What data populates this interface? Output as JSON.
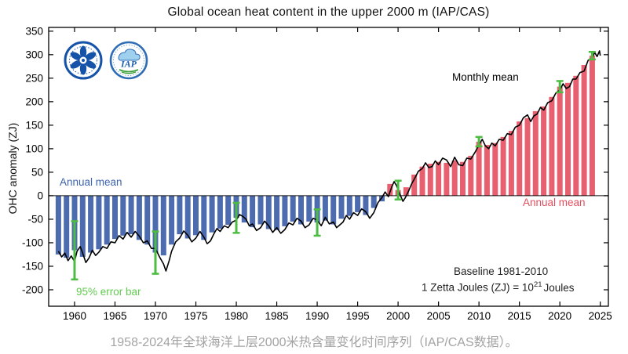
{
  "caption": "1958-2024年全球海洋上层2000米热含量变化时间序列（IAP/CAS数据）。",
  "logos": {
    "iap_text": "IAP"
  },
  "annotations": {
    "annual_mean_left": "Annual mean",
    "monthly_mean": "Monthly mean",
    "annual_mean_right": "Annual mean",
    "error_bar": "95% error bar",
    "baseline": "Baseline 1981-2010",
    "unit_prefix": "1 Zetta Joules (ZJ) = 10",
    "unit_exponent": "21",
    "unit_suffix": "Joules"
  },
  "chart_data": {
    "type": "bar",
    "title": "Global ocean heat content in the upper 2000 m (IAP/CAS)",
    "xlabel": "",
    "ylabel": "OHC anomaly (ZJ)",
    "xlim": [
      1956.8,
      2026
    ],
    "ylim": [
      -235,
      358
    ],
    "grid": false,
    "x_ticks": [
      1960,
      1965,
      1970,
      1975,
      1980,
      1985,
      1990,
      1995,
      2000,
      2005,
      2010,
      2015,
      2020,
      2025
    ],
    "y_ticks": [
      -200,
      -150,
      -100,
      -50,
      0,
      50,
      100,
      150,
      200,
      250,
      300,
      350
    ],
    "colors": {
      "negative_bar": "#4d6cb0",
      "positive_bar": "#e85f6f",
      "line": "#000000",
      "error": "#4cbd42",
      "blue_text": "#3c64b0",
      "red_text": "#e14f5e",
      "green_text": "#62cb51"
    },
    "years": [
      1958,
      1959,
      1960,
      1961,
      1962,
      1963,
      1964,
      1965,
      1966,
      1967,
      1968,
      1969,
      1970,
      1971,
      1972,
      1973,
      1974,
      1975,
      1976,
      1977,
      1978,
      1979,
      1980,
      1981,
      1982,
      1983,
      1984,
      1985,
      1986,
      1987,
      1988,
      1989,
      1990,
      1991,
      1992,
      1993,
      1994,
      1995,
      1996,
      1997,
      1998,
      1999,
      2000,
      2001,
      2002,
      2003,
      2004,
      2005,
      2006,
      2007,
      2008,
      2009,
      2010,
      2011,
      2012,
      2013,
      2014,
      2015,
      2016,
      2017,
      2018,
      2019,
      2020,
      2021,
      2022,
      2023,
      2024
    ],
    "annual_mean": [
      -125,
      -132,
      -116,
      -130,
      -121,
      -114,
      -104,
      -92,
      -85,
      -82,
      -94,
      -104,
      -121,
      -127,
      -104,
      -82,
      -91,
      -84,
      -94,
      -78,
      -70,
      -62,
      -47,
      -57,
      -67,
      -61,
      -71,
      -73,
      -65,
      -55,
      -61,
      -55,
      -57,
      -53,
      -61,
      -49,
      -43,
      -35,
      -41,
      -26,
      -12,
      25,
      12,
      18,
      45,
      62,
      68,
      72,
      70,
      75,
      72,
      85,
      115,
      108,
      112,
      125,
      138,
      158,
      165,
      180,
      190,
      210,
      232,
      240,
      255,
      278,
      298
    ],
    "error_bars": [
      {
        "year": 1960,
        "center": -116,
        "half": 62
      },
      {
        "year": 1970,
        "center": -121,
        "half": 45
      },
      {
        "year": 1980,
        "center": -47,
        "half": 32
      },
      {
        "year": 1990,
        "center": -57,
        "half": 28
      },
      {
        "year": 2000,
        "center": 12,
        "half": 20
      },
      {
        "year": 2010,
        "center": 115,
        "half": 10
      },
      {
        "year": 2020,
        "center": 232,
        "half": 12
      },
      {
        "year": 2024,
        "center": 298,
        "half": 8
      }
    ],
    "monthly_mean": [
      [
        1958.0,
        -118
      ],
      [
        1958.4,
        -130
      ],
      [
        1958.8,
        -122
      ],
      [
        1959.2,
        -138
      ],
      [
        1959.6,
        -128
      ],
      [
        1960.0,
        -140
      ],
      [
        1960.3,
        -118
      ],
      [
        1960.7,
        -108
      ],
      [
        1961.0,
        -122
      ],
      [
        1961.4,
        -142
      ],
      [
        1961.8,
        -132
      ],
      [
        1962.2,
        -116
      ],
      [
        1962.6,
        -127
      ],
      [
        1963.0,
        -120
      ],
      [
        1963.5,
        -108
      ],
      [
        1964.0,
        -112
      ],
      [
        1964.5,
        -98
      ],
      [
        1965.0,
        -100
      ],
      [
        1965.5,
        -85
      ],
      [
        1966.0,
        -92
      ],
      [
        1966.5,
        -78
      ],
      [
        1967.0,
        -88
      ],
      [
        1967.5,
        -76
      ],
      [
        1968.0,
        -86
      ],
      [
        1968.5,
        -100
      ],
      [
        1969.0,
        -96
      ],
      [
        1969.5,
        -112
      ],
      [
        1970.0,
        -112
      ],
      [
        1970.5,
        -130
      ],
      [
        1971.0,
        -145
      ],
      [
        1971.3,
        -160
      ],
      [
        1971.7,
        -138
      ],
      [
        1972.0,
        -118
      ],
      [
        1972.5,
        -98
      ],
      [
        1973.0,
        -90
      ],
      [
        1973.5,
        -75
      ],
      [
        1974.0,
        -84
      ],
      [
        1974.5,
        -98
      ],
      [
        1975.0,
        -90
      ],
      [
        1975.5,
        -76
      ],
      [
        1976.0,
        -88
      ],
      [
        1976.4,
        -102
      ],
      [
        1976.8,
        -96
      ],
      [
        1977.2,
        -82
      ],
      [
        1977.6,
        -70
      ],
      [
        1978.0,
        -76
      ],
      [
        1978.5,
        -64
      ],
      [
        1979.0,
        -68
      ],
      [
        1979.5,
        -56
      ],
      [
        1980.0,
        -52
      ],
      [
        1980.4,
        -40
      ],
      [
        1980.8,
        -44
      ],
      [
        1981.2,
        -50
      ],
      [
        1981.6,
        -64
      ],
      [
        1982.0,
        -60
      ],
      [
        1982.5,
        -74
      ],
      [
        1983.0,
        -68
      ],
      [
        1983.5,
        -54
      ],
      [
        1984.0,
        -64
      ],
      [
        1984.5,
        -78
      ],
      [
        1985.0,
        -68
      ],
      [
        1985.5,
        -80
      ],
      [
        1986.0,
        -72
      ],
      [
        1986.5,
        -58
      ],
      [
        1987.0,
        -62
      ],
      [
        1987.5,
        -48
      ],
      [
        1988.0,
        -54
      ],
      [
        1988.5,
        -68
      ],
      [
        1989.0,
        -62
      ],
      [
        1989.5,
        -48
      ],
      [
        1990.0,
        -52
      ],
      [
        1990.5,
        -64
      ],
      [
        1991.0,
        -46
      ],
      [
        1991.5,
        -60
      ],
      [
        1992.0,
        -56
      ],
      [
        1992.4,
        -68
      ],
      [
        1992.8,
        -62
      ],
      [
        1993.2,
        -56
      ],
      [
        1993.6,
        -42
      ],
      [
        1994.0,
        -50
      ],
      [
        1994.5,
        -36
      ],
      [
        1995.0,
        -42
      ],
      [
        1995.5,
        -28
      ],
      [
        1996.0,
        -34
      ],
      [
        1996.5,
        -48
      ],
      [
        1997.0,
        -36
      ],
      [
        1997.5,
        -15
      ],
      [
        1998.0,
        -4
      ],
      [
        1998.4,
        8
      ],
      [
        1998.8,
        -2
      ],
      [
        1999.2,
        18
      ],
      [
        1999.5,
        30
      ],
      [
        1999.8,
        22
      ],
      [
        2000.2,
        4
      ],
      [
        2000.6,
        -12
      ],
      [
        2000.9,
        -4
      ],
      [
        2001.3,
        10
      ],
      [
        2001.7,
        26
      ],
      [
        2002.0,
        35
      ],
      [
        2002.5,
        52
      ],
      [
        2003.0,
        58
      ],
      [
        2003.4,
        70
      ],
      [
        2003.8,
        60
      ],
      [
        2004.2,
        62
      ],
      [
        2004.6,
        74
      ],
      [
        2005.0,
        66
      ],
      [
        2005.5,
        80
      ],
      [
        2006.0,
        76
      ],
      [
        2006.5,
        62
      ],
      [
        2007.0,
        82
      ],
      [
        2007.5,
        66
      ],
      [
        2008.0,
        64
      ],
      [
        2008.5,
        80
      ],
      [
        2009.0,
        78
      ],
      [
        2009.5,
        92
      ],
      [
        2010.0,
        108
      ],
      [
        2010.4,
        120
      ],
      [
        2010.8,
        106
      ],
      [
        2011.2,
        100
      ],
      [
        2011.6,
        112
      ],
      [
        2012.0,
        106
      ],
      [
        2012.5,
        120
      ],
      [
        2013.0,
        118
      ],
      [
        2013.5,
        132
      ],
      [
        2014.0,
        130
      ],
      [
        2014.5,
        146
      ],
      [
        2015.0,
        150
      ],
      [
        2015.5,
        166
      ],
      [
        2016.0,
        172
      ],
      [
        2016.4,
        158
      ],
      [
        2016.8,
        170
      ],
      [
        2017.2,
        174
      ],
      [
        2017.6,
        188
      ],
      [
        2018.0,
        182
      ],
      [
        2018.5,
        198
      ],
      [
        2019.0,
        202
      ],
      [
        2019.5,
        218
      ],
      [
        2020.0,
        225
      ],
      [
        2020.4,
        238
      ],
      [
        2020.8,
        228
      ],
      [
        2021.2,
        232
      ],
      [
        2021.6,
        248
      ],
      [
        2022.0,
        248
      ],
      [
        2022.5,
        262
      ],
      [
        2023.0,
        265
      ],
      [
        2023.5,
        288
      ],
      [
        2024.0,
        292
      ],
      [
        2024.3,
        305
      ],
      [
        2024.6,
        296
      ],
      [
        2024.9,
        308
      ],
      [
        2025.0,
        298
      ]
    ]
  }
}
